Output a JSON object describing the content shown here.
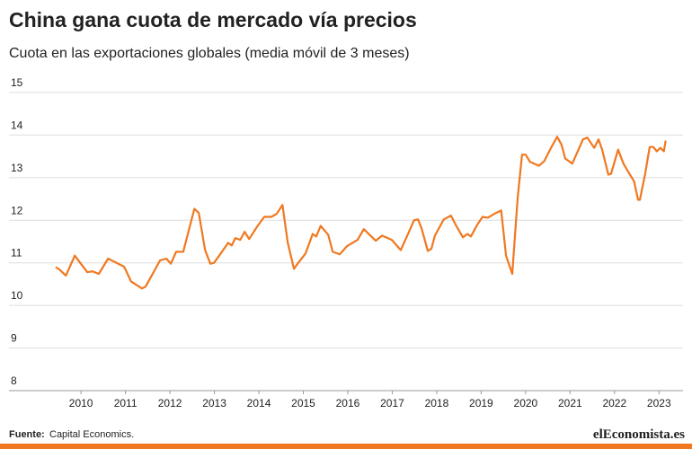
{
  "chart_data": {
    "type": "line",
    "title": "China gana cuota de mercado vía precios",
    "subtitle": "Cuota en las exportaciones globales (media móvil de 3 meses)",
    "source_label": "Fuente:",
    "source": "Capital Economics.",
    "logo": "elEconomista.es",
    "x": [
      2009.43,
      2009.52,
      2009.66,
      2009.86,
      2010.14,
      2010.26,
      2010.4,
      2010.61,
      2010.97,
      2011.13,
      2011.37,
      2011.45,
      2011.78,
      2011.92,
      2012.02,
      2012.14,
      2012.3,
      2012.55,
      2012.65,
      2012.79,
      2012.91,
      2012.99,
      2013.13,
      2013.31,
      2013.39,
      2013.47,
      2013.58,
      2013.68,
      2013.78,
      2013.96,
      2014.12,
      2014.28,
      2014.4,
      2014.53,
      2014.65,
      2014.79,
      2014.87,
      2015.05,
      2015.21,
      2015.29,
      2015.39,
      2015.56,
      2015.66,
      2015.82,
      2015.98,
      2016.22,
      2016.36,
      2016.63,
      2016.77,
      2016.99,
      2017.19,
      2017.33,
      2017.49,
      2017.58,
      2017.66,
      2017.8,
      2017.88,
      2017.96,
      2018.16,
      2018.32,
      2018.44,
      2018.59,
      2018.69,
      2018.77,
      2018.91,
      2019.03,
      2019.15,
      2019.33,
      2019.45,
      2019.56,
      2019.7,
      2019.82,
      2019.92,
      2020.0,
      2020.1,
      2020.3,
      2020.42,
      2020.57,
      2020.71,
      2020.81,
      2020.89,
      2021.05,
      2021.29,
      2021.39,
      2021.54,
      2021.64,
      2021.72,
      2021.86,
      2021.92,
      2022.08,
      2022.2,
      2022.32,
      2022.44,
      2022.53,
      2022.57,
      2022.69,
      2022.79,
      2022.87,
      2022.95,
      2023.03,
      2023.11,
      2023.15
    ],
    "series": [
      {
        "name": "Cuota",
        "color": "#f07820",
        "values": [
          10.9,
          10.84,
          10.7,
          11.17,
          10.78,
          10.8,
          10.74,
          11.1,
          10.91,
          10.56,
          10.4,
          10.44,
          11.06,
          11.1,
          10.98,
          11.26,
          11.26,
          12.27,
          12.17,
          11.3,
          10.98,
          11.0,
          11.2,
          11.47,
          11.41,
          11.58,
          11.54,
          11.73,
          11.56,
          11.85,
          12.08,
          12.08,
          12.15,
          12.36,
          11.47,
          10.86,
          10.98,
          11.22,
          11.68,
          11.62,
          11.87,
          11.66,
          11.26,
          11.2,
          11.39,
          11.54,
          11.79,
          11.52,
          11.64,
          11.54,
          11.3,
          11.62,
          12.0,
          12.02,
          11.81,
          11.28,
          11.33,
          11.64,
          12.02,
          12.11,
          11.87,
          11.6,
          11.68,
          11.62,
          11.89,
          12.08,
          12.06,
          12.17,
          12.23,
          11.17,
          10.74,
          12.52,
          13.54,
          13.54,
          13.37,
          13.28,
          13.39,
          13.7,
          13.96,
          13.77,
          13.45,
          13.33,
          13.9,
          13.94,
          13.7,
          13.9,
          13.66,
          13.07,
          13.09,
          13.66,
          13.33,
          13.12,
          12.91,
          12.48,
          12.48,
          13.09,
          13.72,
          13.72,
          13.62,
          13.7,
          13.62,
          13.87
        ]
      }
    ],
    "xlim": [
      2008.38,
      2023.54
    ],
    "xticks": [
      2010,
      2011,
      2012,
      2013,
      2014,
      2015,
      2016,
      2017,
      2018,
      2019,
      2020,
      2021,
      2022,
      2023
    ],
    "ylim": [
      8,
      15
    ],
    "yticks": [
      8,
      9,
      10,
      11,
      12,
      13,
      14,
      15
    ],
    "grid": true
  }
}
